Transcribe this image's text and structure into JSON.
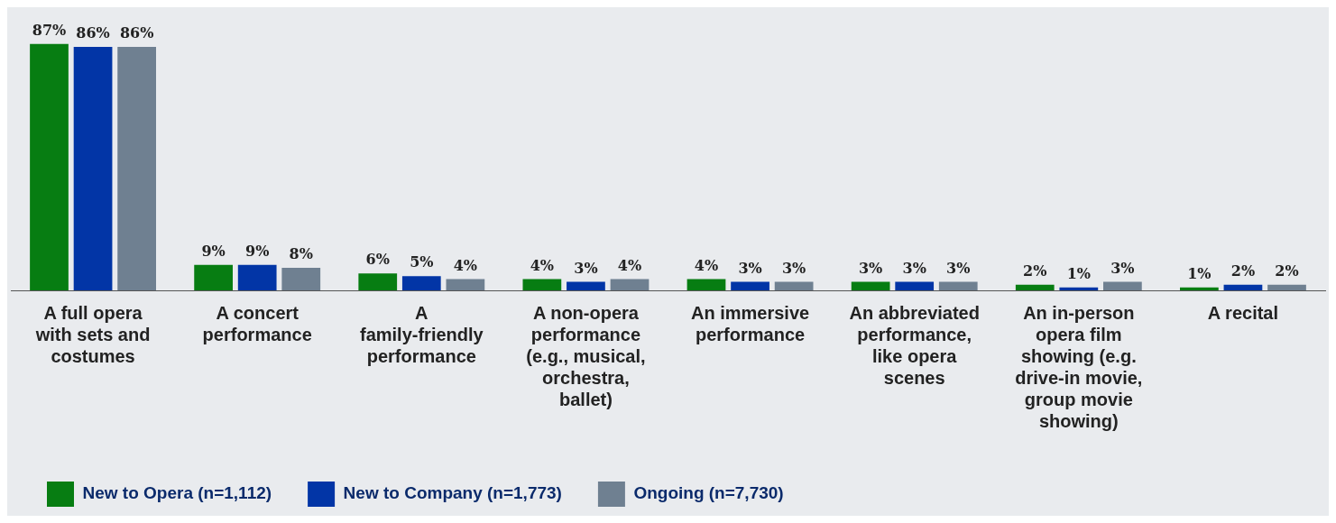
{
  "chart_data": {
    "type": "bar",
    "categories": [
      "A full opera with sets and costumes",
      "A concert performance",
      "A family-friendly performance",
      "A non-opera performance (e.g., musical, orchestra, ballet)",
      "An immersive performance",
      "An abbreviated performance, like opera scenes",
      "An in-person opera film showing (e.g. drive-in movie, group movie showing)",
      "A recital"
    ],
    "series": [
      {
        "name": "New to Opera (n=1,112)",
        "color": "#077d12",
        "values": [
          87,
          9,
          6,
          4,
          4,
          3,
          2,
          1
        ],
        "value_labels": [
          "87%",
          "9%",
          "6%",
          "4%",
          "4%",
          "3%",
          "2%",
          "1%"
        ]
      },
      {
        "name": "New to Company (n=1,773)",
        "color": "#0235a6",
        "values": [
          86,
          9,
          5,
          3,
          3,
          3,
          1,
          2
        ],
        "value_labels": [
          "86%",
          "9%",
          "5%",
          "3%",
          "3%",
          "3%",
          "1%",
          "2%"
        ]
      },
      {
        "name": "Ongoing (n=7,730)",
        "color": "#6f8091",
        "values": [
          86,
          8,
          4,
          4,
          3,
          3,
          3,
          2
        ],
        "value_labels": [
          "86%",
          "8%",
          "4%",
          "4%",
          "3%",
          "3%",
          "3%",
          "2%"
        ]
      }
    ],
    "ylim": [
      0,
      100
    ],
    "tick_labels": "x",
    "grid": false,
    "legend": "bottom left"
  }
}
